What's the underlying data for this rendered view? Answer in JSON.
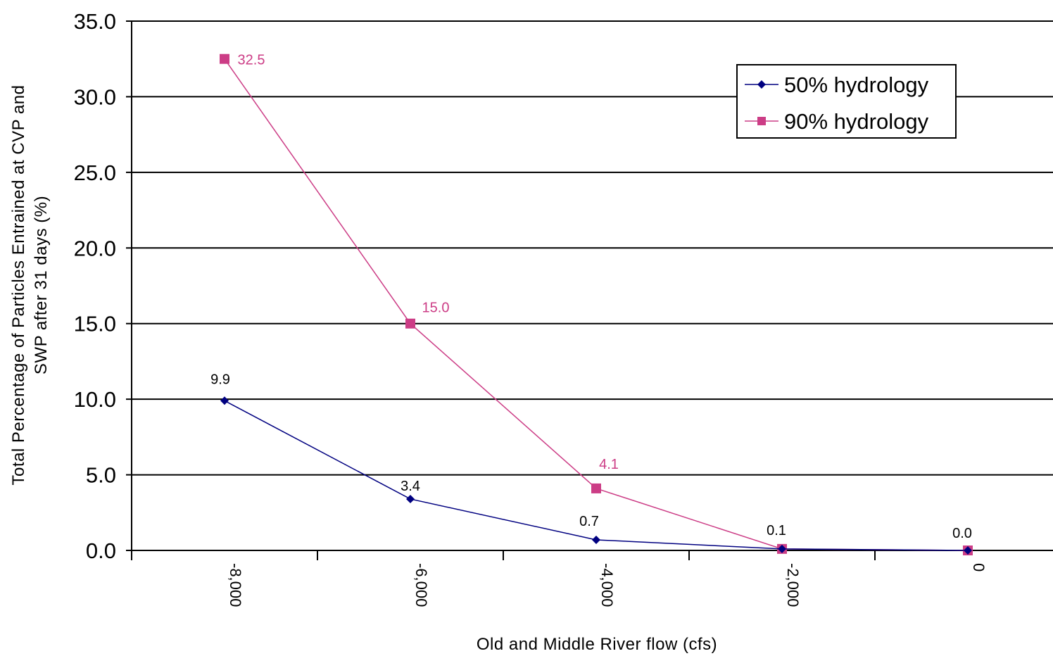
{
  "chart_data": {
    "type": "line",
    "title": "",
    "xlabel": "Old and Middle River flow (cfs)",
    "ylabel_lines": [
      "Total Percentage of Particles Entrained at CVP and",
      "SWP after 31 days (%)"
    ],
    "categories": [
      "-8,000",
      "-6,000",
      "-4,000",
      "-2,000",
      "0"
    ],
    "y_ticks": [
      "0.0",
      "5.0",
      "10.0",
      "15.0",
      "20.0",
      "25.0",
      "30.0",
      "35.0"
    ],
    "ylim": [
      0,
      35
    ],
    "grid": true,
    "legend_position": "top-right",
    "series": [
      {
        "name": "50% hydrology",
        "color": "#000080",
        "marker": "diamond",
        "values": [
          9.9,
          3.4,
          0.7,
          0.1,
          0.0
        ],
        "labels": [
          "9.9",
          "3.4",
          "0.7",
          "0.1",
          "0.0"
        ],
        "label_color": "#000000"
      },
      {
        "name": "90% hydrology",
        "color": "#cc3d86",
        "marker": "square",
        "values": [
          32.5,
          15.0,
          4.1,
          0.1,
          0.0
        ],
        "labels": [
          "32.5",
          "15.0",
          "4.1",
          "",
          ""
        ],
        "label_color": "#cc3d86"
      }
    ]
  }
}
